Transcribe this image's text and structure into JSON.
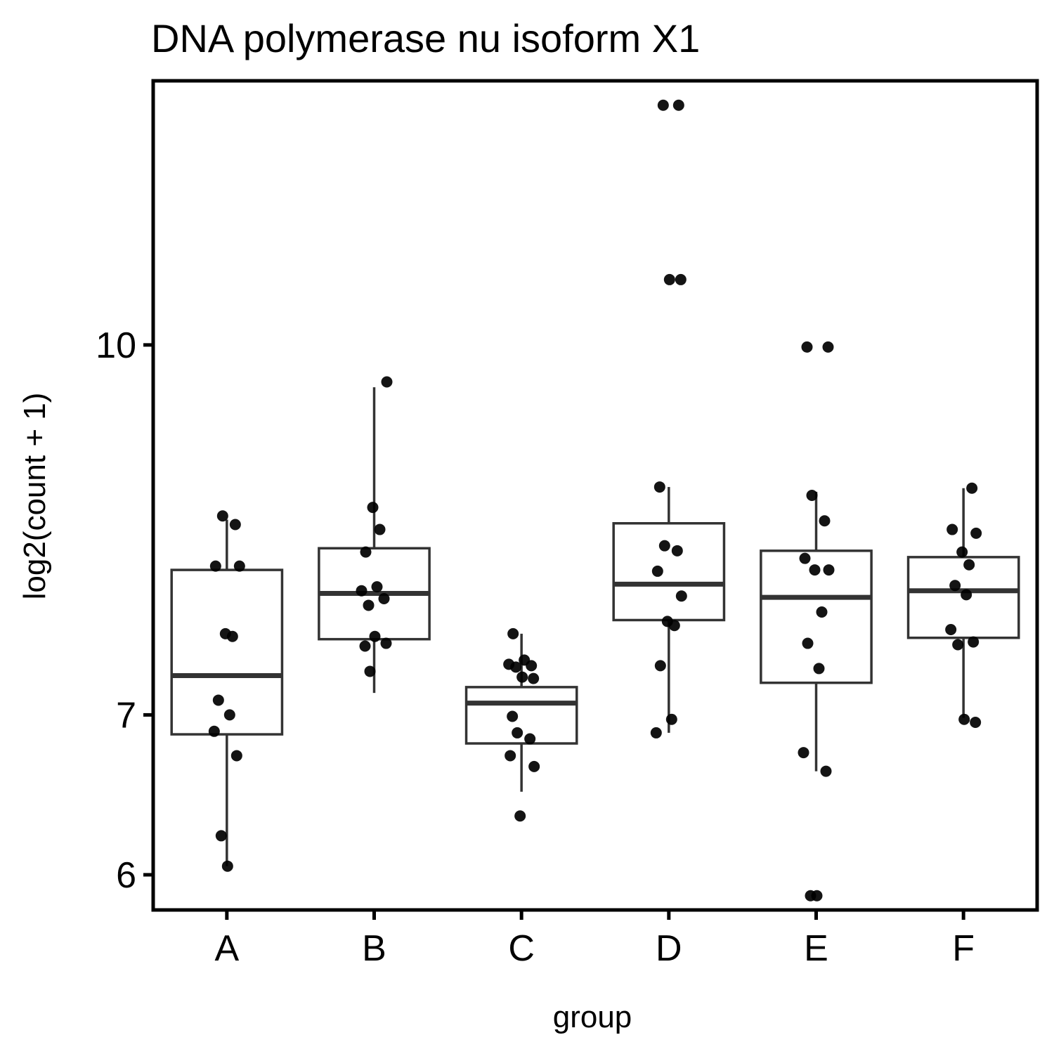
{
  "chart_data": {
    "type": "box",
    "title": "DNA polymerase nu isoform X1",
    "xlabel": "group",
    "ylabel": "log2(count + 1)",
    "y_scale": "log",
    "ylim": [
      5.8,
      12.9
    ],
    "y_ticks": [
      6,
      7,
      10
    ],
    "y_tick_labels": [
      "6",
      "7",
      "10"
    ],
    "categories": [
      "A",
      "B",
      "C",
      "D",
      "E",
      "F"
    ],
    "grid": false,
    "legend": "none",
    "boxes": [
      {
        "group": "A",
        "whisker_low": 6.05,
        "q1": 6.87,
        "median": 7.27,
        "q3": 8.05,
        "whisker_high": 8.45
      },
      {
        "group": "B",
        "whisker_low": 7.15,
        "q1": 7.53,
        "median": 7.87,
        "q3": 8.22,
        "whisker_high": 9.6
      },
      {
        "group": "C",
        "whisker_low": 6.5,
        "q1": 6.81,
        "median": 7.08,
        "q3": 7.19,
        "whisker_high": 7.57
      },
      {
        "group": "D",
        "whisker_low": 6.88,
        "q1": 7.67,
        "median": 7.94,
        "q3": 8.42,
        "whisker_high": 8.72
      },
      {
        "group": "E",
        "whisker_low": 6.63,
        "q1": 7.22,
        "median": 7.84,
        "q3": 8.2,
        "whisker_high": 8.68
      },
      {
        "group": "F",
        "whisker_low": 6.98,
        "q1": 7.54,
        "median": 7.89,
        "q3": 8.15,
        "whisker_high": 8.71
      }
    ],
    "points": [
      {
        "group": "A",
        "values": [
          8.48,
          8.41,
          8.08,
          8.08,
          7.57,
          7.55,
          7.1,
          7.0,
          6.89,
          6.73,
          6.23,
          6.05
        ]
      },
      {
        "group": "B",
        "values": [
          9.65,
          8.55,
          8.37,
          8.19,
          7.92,
          7.89,
          7.83,
          7.78,
          7.55,
          7.5,
          7.48,
          7.3
        ]
      },
      {
        "group": "C",
        "values": [
          7.57,
          7.38,
          7.35,
          7.34,
          7.33,
          7.26,
          7.25,
          6.99,
          6.88,
          6.84,
          6.73,
          6.66,
          6.35
        ]
      },
      {
        "group": "D",
        "values": [
          12.6,
          12.6,
          10.65,
          10.65,
          8.72,
          8.24,
          8.2,
          8.04,
          7.85,
          7.66,
          7.63,
          7.34,
          6.97,
          6.88
        ]
      },
      {
        "group": "E",
        "values": [
          9.98,
          9.98,
          8.65,
          8.44,
          8.14,
          8.05,
          8.05,
          7.73,
          7.5,
          7.32,
          6.75,
          6.63,
          5.88,
          5.88
        ]
      },
      {
        "group": "F",
        "values": [
          8.71,
          8.37,
          8.34,
          8.19,
          8.09,
          7.93,
          7.86,
          7.6,
          7.51,
          7.49,
          6.97,
          6.95
        ]
      }
    ]
  }
}
